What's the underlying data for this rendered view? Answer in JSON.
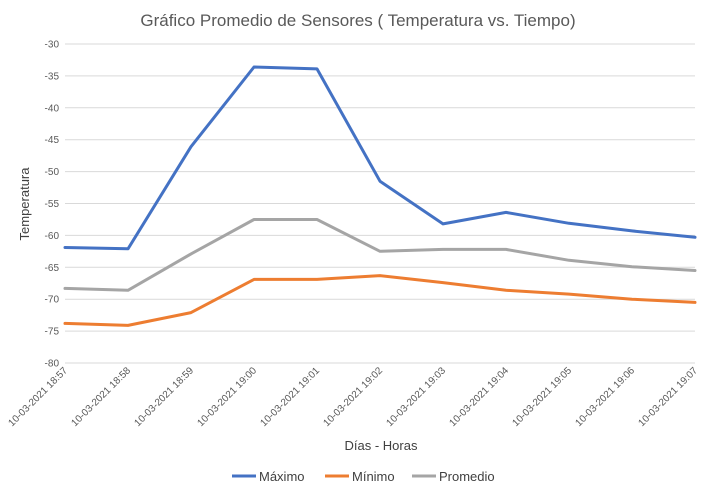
{
  "chart_data": {
    "type": "line",
    "title": "Gráfico Promedio de Sensores ( Temperatura vs. Tiempo)",
    "xlabel": "Días - Horas",
    "ylabel": "Temperatura",
    "ylim": [
      -80,
      -30
    ],
    "yticks": [
      "-30",
      "-35",
      "-40",
      "-45",
      "-50",
      "-55",
      "-60",
      "-65",
      "-70",
      "-75",
      "-80"
    ],
    "categories": [
      "10-03-2021 18:57",
      "10-03-2021 18:58",
      "10-03-2021 18:59",
      "10-03-2021 19:00",
      "10-03-2021 19:01",
      "10-03-2021 19:02",
      "10-03-2021 19:03",
      "10-03-2021 19:04",
      "10-03-2021 19:05",
      "10-03-2021 19:06",
      "10-03-2021 19:07"
    ],
    "grid": true,
    "legend_position": "bottom",
    "series": [
      {
        "name": "Máximo",
        "color": "#4472c4",
        "values": [
          -61.9,
          -62.1,
          -46.1,
          -33.6,
          -33.9,
          -51.5,
          -58.2,
          -56.4,
          -58.1,
          -59.3,
          -60.3
        ]
      },
      {
        "name": "Mínimo",
        "color": "#ed7d31",
        "values": [
          -73.8,
          -74.1,
          -72.1,
          -66.9,
          -66.9,
          -66.3,
          -67.4,
          -68.6,
          -69.2,
          -70.0,
          -70.5
        ]
      },
      {
        "name": "Promedio",
        "color": "#a5a5a5",
        "values": [
          -68.3,
          -68.6,
          -62.9,
          -57.5,
          -57.5,
          -62.5,
          -62.2,
          -62.2,
          -63.9,
          -64.9,
          -65.5
        ]
      }
    ]
  }
}
